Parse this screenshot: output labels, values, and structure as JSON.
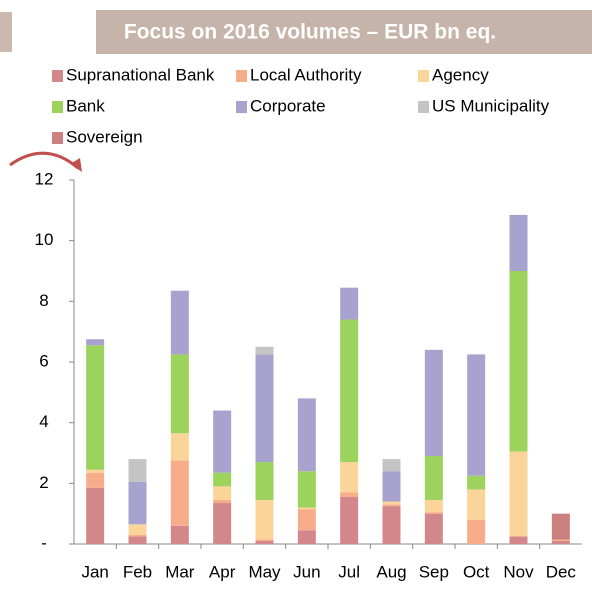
{
  "chart_data": {
    "type": "stacked_bar",
    "title": "Focus on 2016 volumes – EUR bn eq.",
    "categories": [
      "Jan",
      "Feb",
      "Mar",
      "Apr",
      "May",
      "Jun",
      "Jul",
      "Aug",
      "Sep",
      "Oct",
      "Nov",
      "Dec"
    ],
    "series": [
      {
        "name": "Supranational Bank",
        "color": "#d4878a",
        "values": [
          1.85,
          0.25,
          0.6,
          1.35,
          0.1,
          0.45,
          1.55,
          1.25,
          1.0,
          0,
          0.25,
          0.1
        ]
      },
      {
        "name": "Local Authority",
        "color": "#f7ad8a",
        "values": [
          0.5,
          0.05,
          2.15,
          0.1,
          0.05,
          0.7,
          0.15,
          0.05,
          0.05,
          0.8,
          0,
          0.05
        ]
      },
      {
        "name": "Agency",
        "color": "#fbd49a",
        "values": [
          0.1,
          0.35,
          0.9,
          0.45,
          1.3,
          0.05,
          1.0,
          0.1,
          0.4,
          1.0,
          2.8,
          0
        ]
      },
      {
        "name": "Bank",
        "color": "#9bd35c",
        "values": [
          4.1,
          0,
          2.6,
          0.45,
          1.25,
          1.2,
          4.7,
          0,
          1.45,
          0.45,
          5.95,
          0
        ]
      },
      {
        "name": "Corporate",
        "color": "#a8a2cf",
        "values": [
          0.2,
          1.4,
          2.1,
          2.05,
          3.55,
          2.4,
          1.05,
          1.0,
          3.5,
          4.0,
          1.85,
          0
        ]
      },
      {
        "name": "US Municipality",
        "color": "#c4c4c4",
        "values": [
          0,
          0.75,
          0,
          0,
          0.25,
          0,
          0,
          0.4,
          0,
          0,
          0,
          0
        ]
      },
      {
        "name": "Sovereign",
        "color": "#cd8080",
        "values": [
          0,
          0,
          0,
          0,
          0,
          0,
          0,
          0,
          0,
          0,
          0,
          0.85
        ]
      }
    ],
    "ylim": [
      0,
      12
    ],
    "yticks": [
      {
        "value": 0,
        "label": "-"
      },
      2,
      4,
      6,
      8,
      10,
      12
    ]
  }
}
